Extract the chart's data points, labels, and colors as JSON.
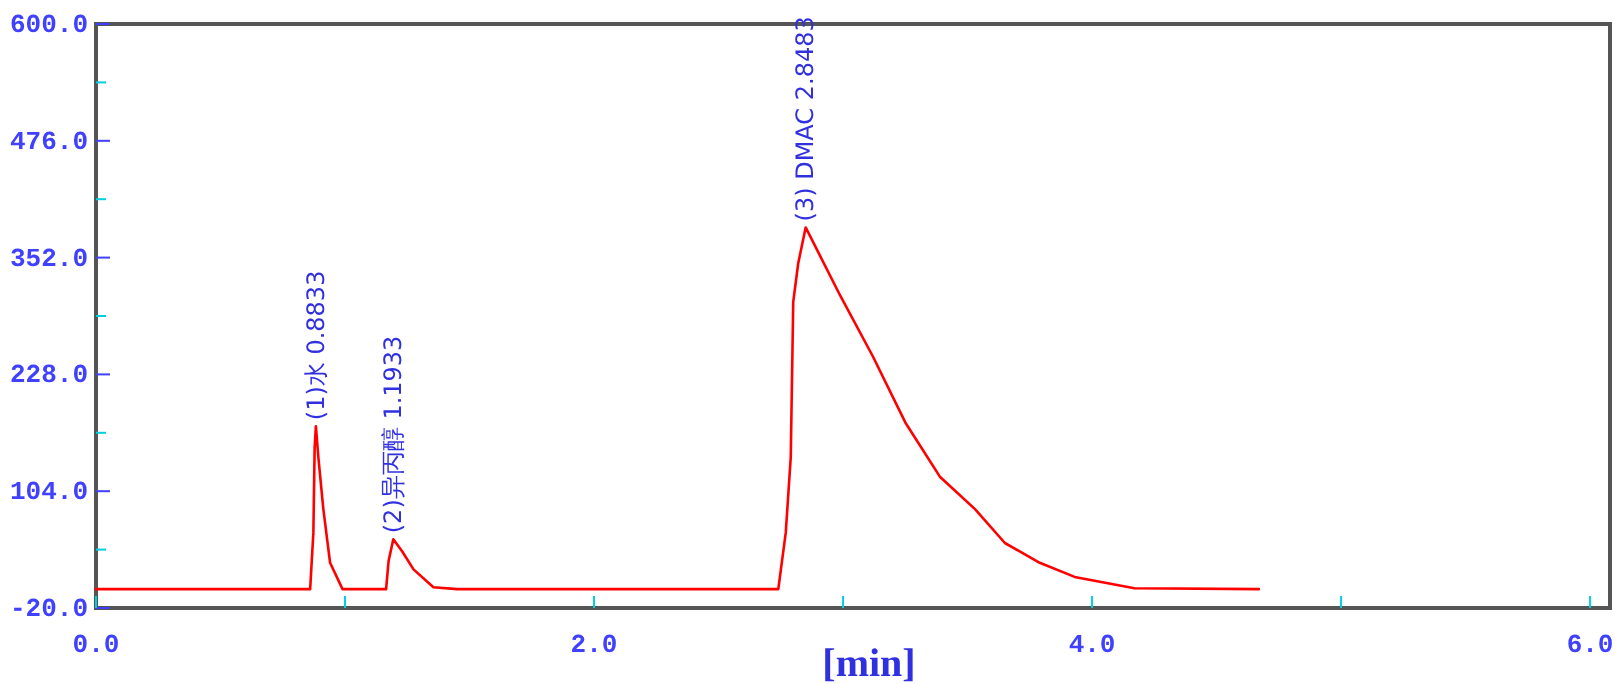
{
  "chart_data": {
    "type": "line",
    "xlabel": "[min]",
    "xlim": [
      0,
      6.08
    ],
    "xticks": [
      {
        "value": 0,
        "label": "0.0"
      },
      {
        "value": 1,
        "label": null
      },
      {
        "value": 2,
        "label": "2.0"
      },
      {
        "value": 3,
        "label": null
      },
      {
        "value": 4,
        "label": "4.0"
      },
      {
        "value": 5,
        "label": null
      },
      {
        "value": 6,
        "label": "6.0"
      }
    ],
    "ylim": [
      -20,
      600
    ],
    "yticks": [
      {
        "value": -20,
        "label": "-20.0"
      },
      {
        "value": 42,
        "label": null
      },
      {
        "value": 104,
        "label": "104.0"
      },
      {
        "value": 166,
        "label": null
      },
      {
        "value": 228,
        "label": "228.0"
      },
      {
        "value": 290,
        "label": null
      },
      {
        "value": 352,
        "label": "352.0"
      },
      {
        "value": 414,
        "label": null
      },
      {
        "value": 476,
        "label": "476.0"
      },
      {
        "value": 538,
        "label": null
      },
      {
        "value": 600,
        "label": "600.0"
      }
    ],
    "series": [
      {
        "color": "#ff0000",
        "x": [
          0,
          0.86,
          0.873,
          0.878,
          0.883,
          0.893,
          0.913,
          0.94,
          0.99,
          1.165,
          1.175,
          1.194,
          1.23,
          1.275,
          1.355,
          1.45,
          2.74,
          2.77,
          2.79,
          2.8,
          2.82,
          2.85,
          2.99,
          3.12,
          3.25,
          3.39,
          3.53,
          3.65,
          3.79,
          3.93,
          4.17,
          4.67
        ],
        "values": [
          0,
          0,
          60,
          150,
          173,
          140,
          85,
          28,
          0,
          0,
          30,
          53,
          40,
          21,
          2,
          0,
          0,
          60,
          140,
          305,
          346,
          384,
          311,
          247,
          177,
          119,
          85,
          49,
          28,
          13,
          1,
          0
        ]
      }
    ],
    "annotations": [
      {
        "text": "(1)水 0.8833",
        "x": 0.8833,
        "y": 173
      },
      {
        "text": "(2)异丙醇 1.1933",
        "x": 1.1933,
        "y": 53
      },
      {
        "text": "(3) DMAC 2.8483",
        "x": 2.8483,
        "y": 384
      }
    ]
  }
}
